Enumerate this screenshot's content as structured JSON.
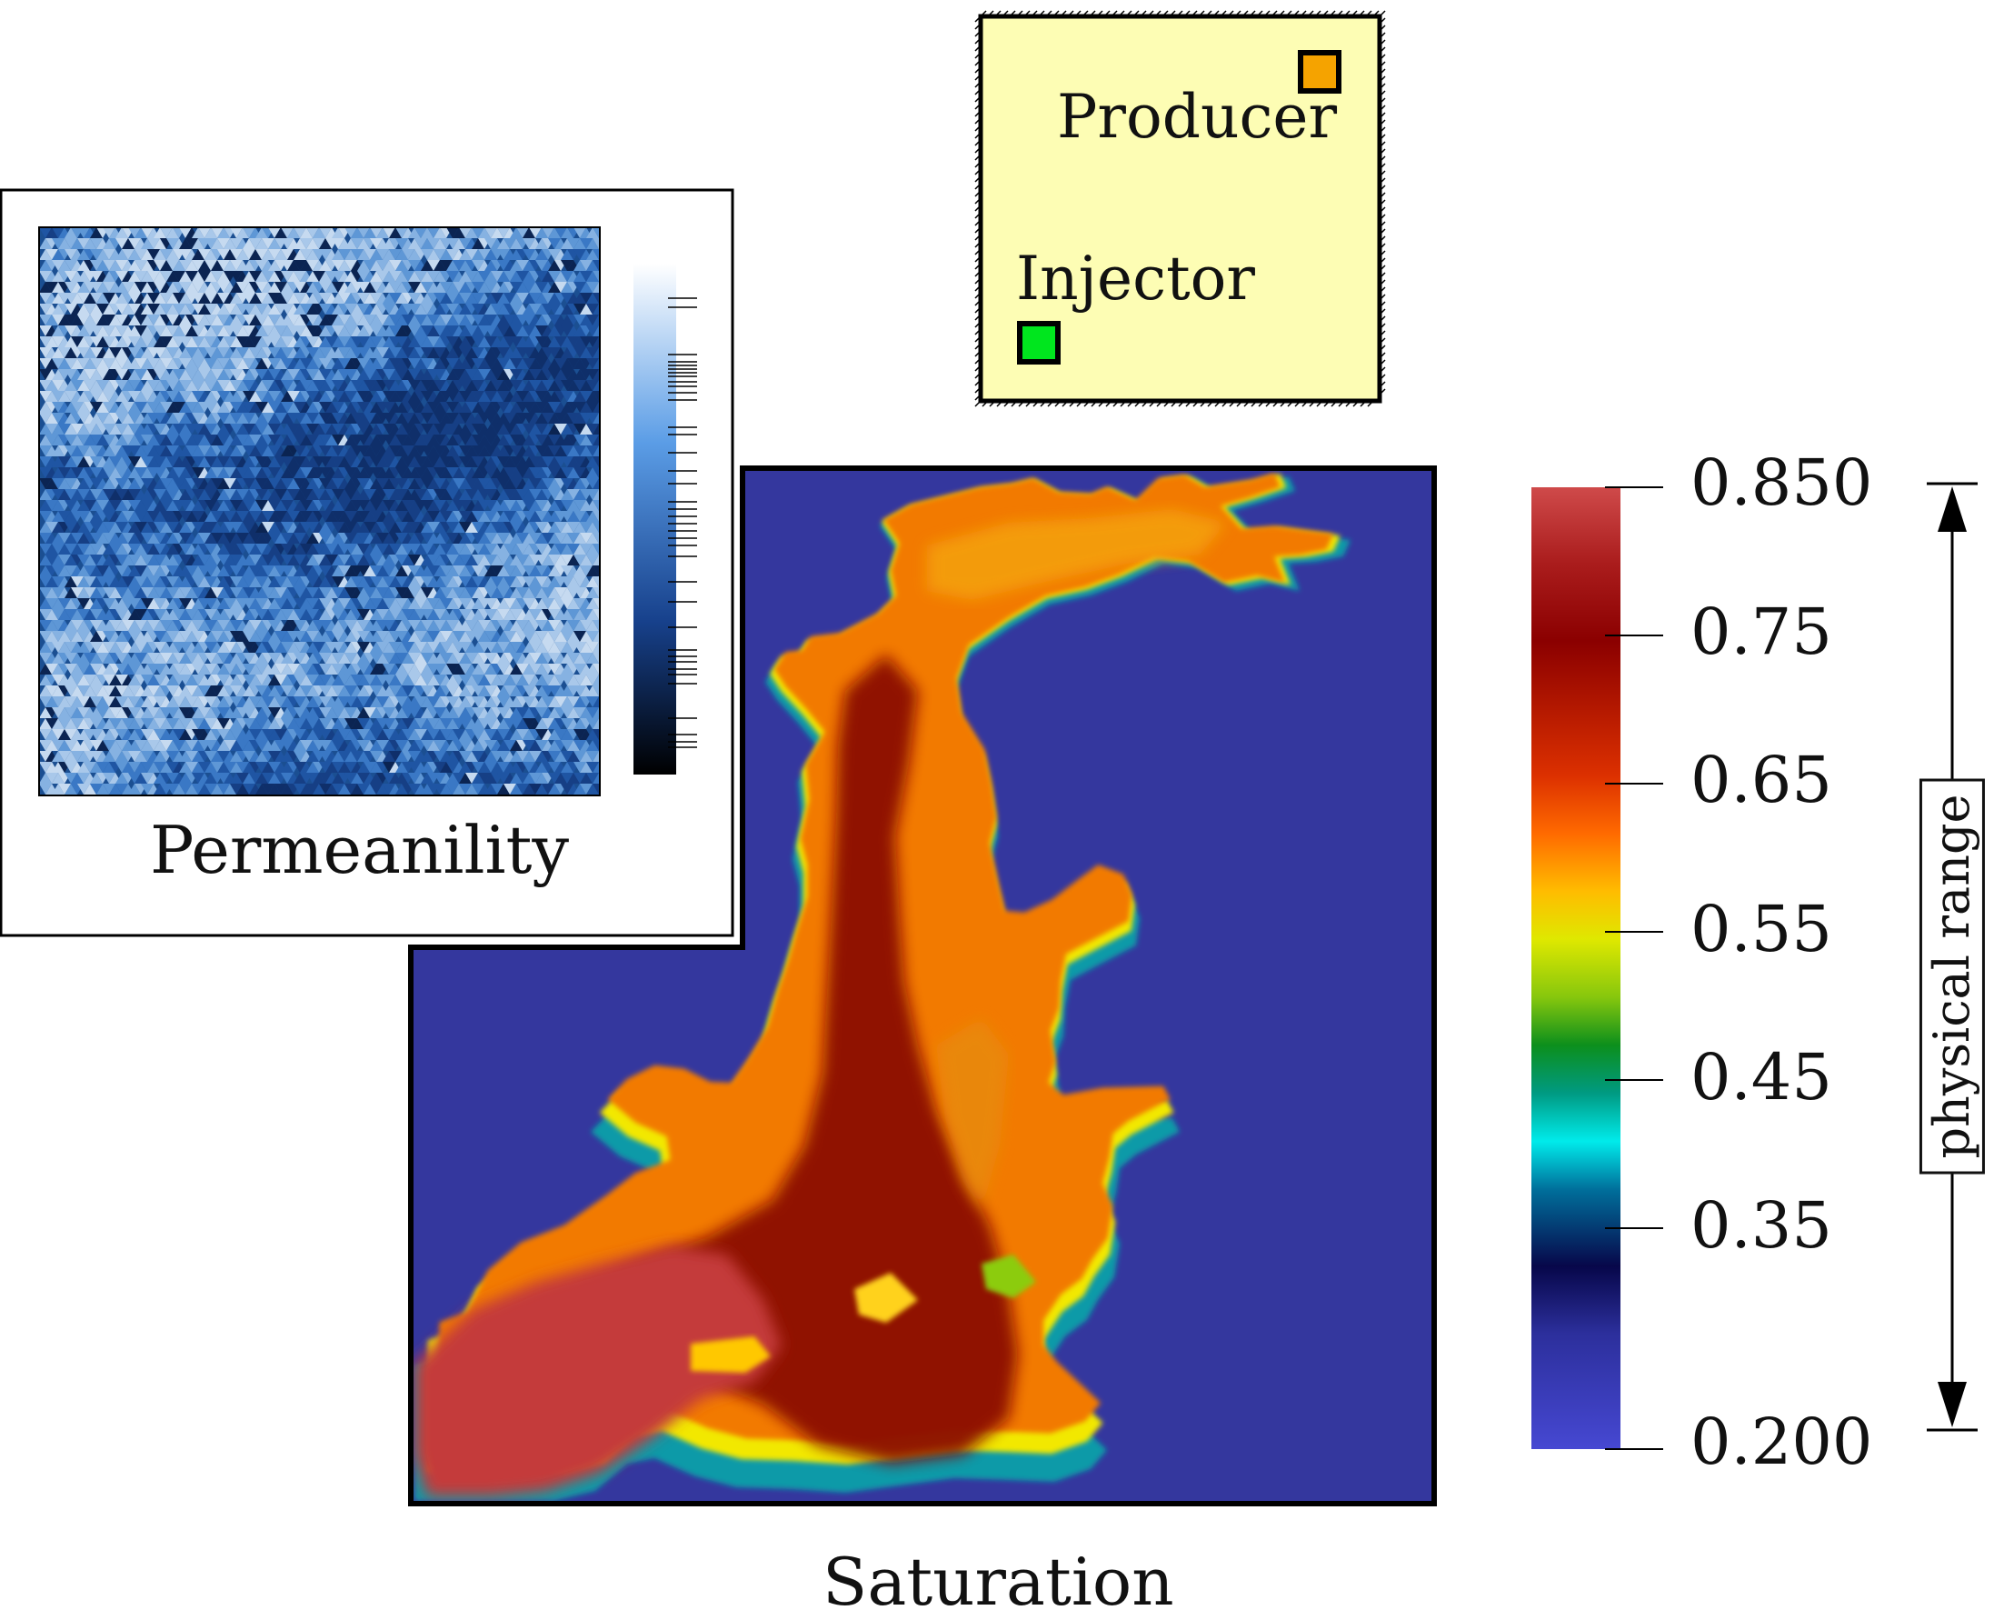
{
  "permeability_panel": {
    "caption": "Permeanility"
  },
  "well_schematic": {
    "producer": {
      "label": "Producer",
      "color": "#f5a300"
    },
    "injector": {
      "label": "Injector",
      "color": "#00e61e"
    },
    "fill": "#fdfdb4"
  },
  "saturation_panel": {
    "caption": "Saturation",
    "background": "#34379e"
  },
  "colorbar": {
    "ticks": [
      "0.850",
      "0.75",
      "0.65",
      "0.55",
      "0.45",
      "0.35",
      "0.200"
    ],
    "range_label": "physical range",
    "colormap": [
      "#4648d2",
      "#2c2f9c",
      "#07074a",
      "#006f9b",
      "#00ebeb",
      "#009a82",
      "#0c8f1c",
      "#87c70d",
      "#dfe800",
      "#ffbc00",
      "#ff6a00",
      "#dc3000",
      "#8b0000",
      "#aa1c1c",
      "#cf4a4a"
    ]
  }
}
